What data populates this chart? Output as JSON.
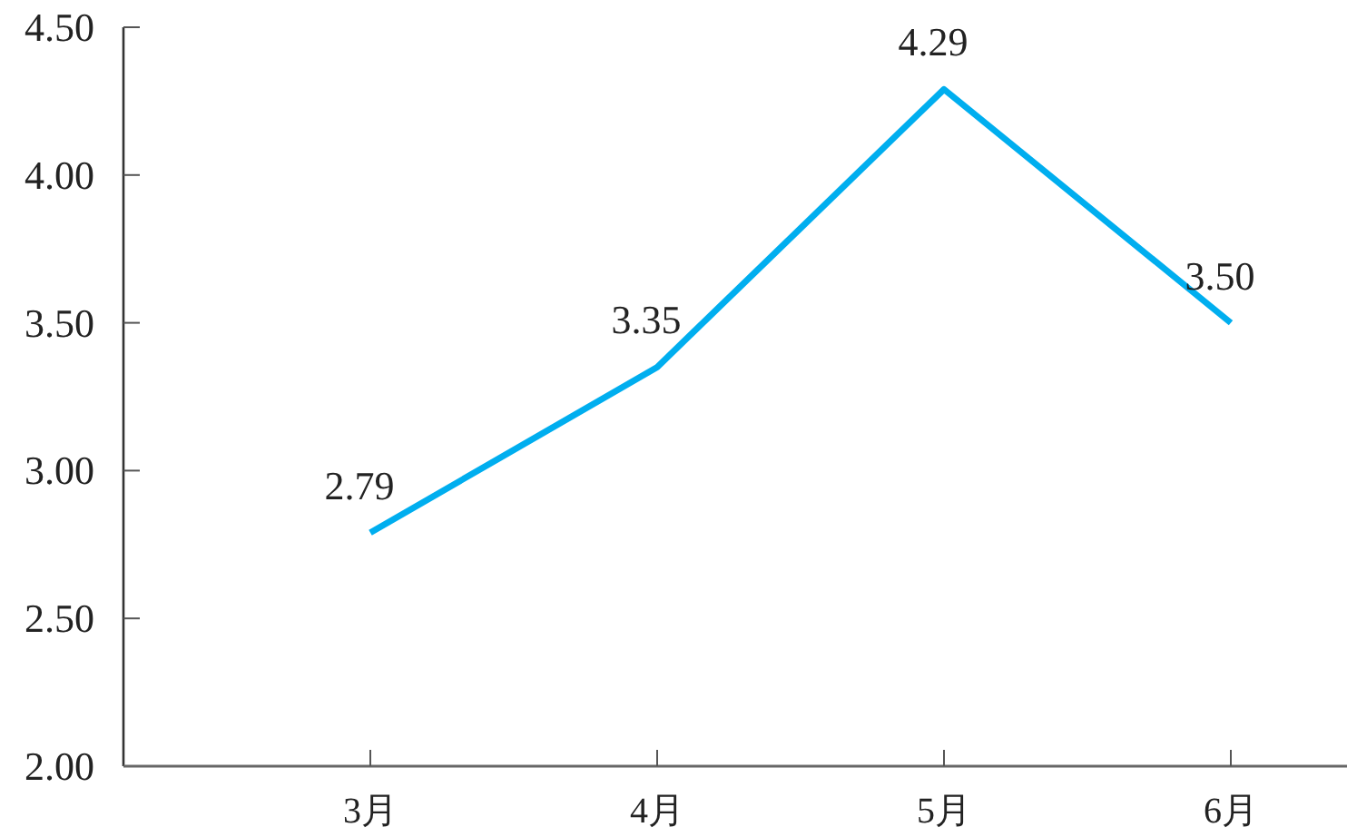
{
  "chart_data": {
    "type": "line",
    "categories": [
      "3月",
      "4月",
      "5月",
      "6月"
    ],
    "values": [
      2.79,
      3.35,
      4.29,
      3.5
    ],
    "value_labels": [
      "2.79",
      "3.35",
      "4.29",
      "3.50"
    ],
    "color": "#00aeef",
    "ylim": [
      2,
      4.5
    ],
    "yticks": [
      {
        "value": 2,
        "label": "2.00"
      },
      {
        "value": 2.5,
        "label": "2.50"
      },
      {
        "value": 3,
        "label": "3.00"
      },
      {
        "value": 3.5,
        "label": "3.50"
      },
      {
        "value": 4,
        "label": "4.00"
      },
      {
        "value": 4.5,
        "label": "4.50"
      }
    ]
  }
}
